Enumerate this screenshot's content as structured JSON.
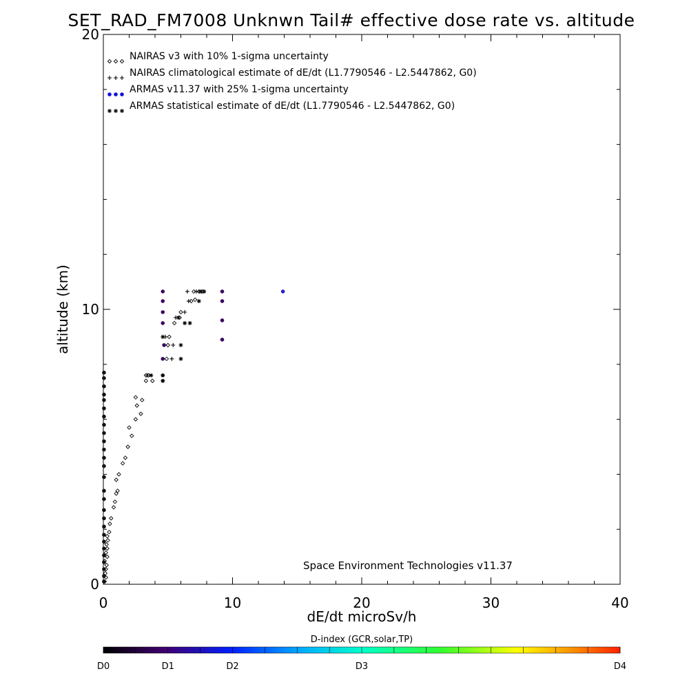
{
  "chart_data": {
    "type": "scatter",
    "title": "SET_RAD_FM7008  Unknwn Tail#  effective dose rate vs. altitude",
    "xlabel": "dE/dt microSv/h",
    "ylabel": "altitude (km)",
    "xlim": [
      0,
      40
    ],
    "ylim": [
      0,
      20
    ],
    "x_ticks": [
      "0",
      "10",
      "20",
      "30",
      "40"
    ],
    "y_ticks": [
      "0",
      "10",
      "20"
    ],
    "grid": false,
    "legend_position": "top-left",
    "credit": "Space Environment Technologies v11.37",
    "colorbar": {
      "title": "D-index (GCR,solar,TP)",
      "labels": [
        {
          "text": "D0",
          "value": 0
        },
        {
          "text": "D1",
          "value": 0.125
        },
        {
          "text": "D2",
          "value": 0.25
        },
        {
          "text": "D3",
          "value": 0.5
        },
        {
          "text": "D4",
          "value": 1.0
        }
      ]
    },
    "series": [
      {
        "name": "NAIRAS v3 with 10% 1-sigma uncertainty",
        "marker": "diamond",
        "color": "#000000",
        "points": [
          [
            0.1,
            0.1
          ],
          [
            0.2,
            0.25
          ],
          [
            0.15,
            0.4
          ],
          [
            0.2,
            0.55
          ],
          [
            0.25,
            0.7
          ],
          [
            0.1,
            0.85
          ],
          [
            0.3,
            1.0
          ],
          [
            0.2,
            1.15
          ],
          [
            0.3,
            1.3
          ],
          [
            0.25,
            1.45
          ],
          [
            0.35,
            1.6
          ],
          [
            0.3,
            1.75
          ],
          [
            0.45,
            1.9
          ],
          [
            0.5,
            2.2
          ],
          [
            0.6,
            2.4
          ],
          [
            0.8,
            2.8
          ],
          [
            0.9,
            3.0
          ],
          [
            1.0,
            3.3
          ],
          [
            1.1,
            3.4
          ],
          [
            1.0,
            3.8
          ],
          [
            1.2,
            4.0
          ],
          [
            1.5,
            4.4
          ],
          [
            1.7,
            4.6
          ],
          [
            1.9,
            5.0
          ],
          [
            2.2,
            5.4
          ],
          [
            2.0,
            5.7
          ],
          [
            2.5,
            6.0
          ],
          [
            2.9,
            6.2
          ],
          [
            2.6,
            6.5
          ],
          [
            3.0,
            6.7
          ],
          [
            2.5,
            6.8
          ],
          [
            3.3,
            7.4
          ],
          [
            3.8,
            7.4
          ],
          [
            3.5,
            7.6
          ],
          [
            3.3,
            7.6
          ],
          [
            4.9,
            8.2
          ],
          [
            5.0,
            8.7
          ],
          [
            5.1,
            9.0
          ],
          [
            5.5,
            9.5
          ],
          [
            5.9,
            9.7
          ],
          [
            6.0,
            9.9
          ],
          [
            6.8,
            10.3
          ],
          [
            7.1,
            10.35
          ],
          [
            7.0,
            10.65
          ],
          [
            7.4,
            10.65
          ],
          [
            7.7,
            10.65
          ]
        ]
      },
      {
        "name": "NAIRAS climatological estimate of dE/dt (L1.7790546 - L2.5447862, G0)",
        "marker": "plus",
        "color": "#000000",
        "points": [
          [
            5.3,
            8.2
          ],
          [
            5.4,
            8.7
          ],
          [
            4.8,
            9.0
          ],
          [
            5.6,
            9.7
          ],
          [
            6.3,
            9.9
          ],
          [
            6.6,
            10.3
          ],
          [
            7.2,
            10.65
          ],
          [
            7.6,
            10.65
          ],
          [
            6.5,
            10.65
          ],
          [
            3.4,
            7.6
          ]
        ]
      },
      {
        "name": "ARMAS v11.37 with 25% 1-sigma uncertainty",
        "marker": "dot",
        "color": "#1111dd",
        "points": [
          [
            4.6,
            7.4
          ],
          [
            4.6,
            7.6
          ],
          [
            4.6,
            8.2
          ],
          [
            4.7,
            8.7
          ],
          [
            4.6,
            9.5
          ],
          [
            4.6,
            9.9
          ],
          [
            4.6,
            10.3
          ],
          [
            4.6,
            10.65
          ],
          [
            9.2,
            8.9
          ],
          [
            9.2,
            9.6
          ],
          [
            9.2,
            10.3
          ],
          [
            9.2,
            10.65
          ],
          [
            13.9,
            10.65
          ],
          [
            0.05,
            0.1
          ],
          [
            0.05,
            0.3
          ],
          [
            0.05,
            0.55
          ],
          [
            0.05,
            0.8
          ],
          [
            0.05,
            1.05
          ],
          [
            0.05,
            1.3
          ],
          [
            0.05,
            1.55
          ],
          [
            0.05,
            1.8
          ],
          [
            0.05,
            2.1
          ],
          [
            0.05,
            2.4
          ],
          [
            0.05,
            2.7
          ],
          [
            0.05,
            3.1
          ],
          [
            0.05,
            3.4
          ],
          [
            0.05,
            3.9
          ],
          [
            0.05,
            4.3
          ],
          [
            0.05,
            4.6
          ],
          [
            0.05,
            4.9
          ],
          [
            0.05,
            5.2
          ],
          [
            0.05,
            5.5
          ],
          [
            0.05,
            5.8
          ],
          [
            0.05,
            6.1
          ],
          [
            0.05,
            6.4
          ],
          [
            0.05,
            6.7
          ],
          [
            0.05,
            6.9
          ],
          [
            0.05,
            7.2
          ],
          [
            0.05,
            7.5
          ],
          [
            0.05,
            7.7
          ]
        ]
      },
      {
        "name": "ARMAS statistical estimate of dE/dt (L1.7790546 - L2.5447862, G0)",
        "marker": "asterisk",
        "color": "#000000",
        "points": [
          [
            6.0,
            8.2
          ],
          [
            6.0,
            8.7
          ],
          [
            6.3,
            9.5
          ],
          [
            6.7,
            9.5
          ],
          [
            5.8,
            9.7
          ],
          [
            7.4,
            10.3
          ],
          [
            7.8,
            10.65
          ],
          [
            7.5,
            10.65
          ],
          [
            4.6,
            9.0
          ],
          [
            3.7,
            7.6
          ]
        ]
      }
    ]
  }
}
